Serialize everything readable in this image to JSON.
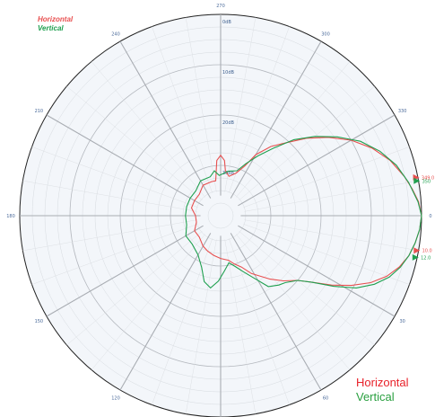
{
  "chart_data": {
    "type": "polar-line",
    "angle_ticks": [
      "0",
      "30",
      "60",
      "90",
      "120",
      "150",
      "180",
      "210",
      "240",
      "270",
      "300",
      "330"
    ],
    "radial_ticks": [
      "0dB",
      "10dB",
      "20dB",
      "30dB"
    ],
    "angle_direction": "clockwise",
    "angle_zero": "right",
    "series": [
      {
        "name": "Horizontal",
        "color": "#e85050",
        "points": [
          [
            0,
            0
          ],
          [
            4,
            -0.3
          ],
          [
            8,
            -0.9
          ],
          [
            12,
            -1.7
          ],
          [
            16,
            -3
          ],
          [
            20,
            -4.8
          ],
          [
            24,
            -7.3
          ],
          [
            28,
            -10.5
          ],
          [
            32,
            -14
          ],
          [
            36,
            -17.5
          ],
          [
            40,
            -20
          ],
          [
            46,
            -22
          ],
          [
            52,
            -24
          ],
          [
            58,
            -26
          ],
          [
            62,
            -27
          ],
          [
            68,
            -29
          ],
          [
            74,
            -30
          ],
          [
            80,
            -31
          ],
          [
            90,
            -31.5
          ],
          [
            100,
            -32
          ],
          [
            110,
            -32.5
          ],
          [
            120,
            -33
          ],
          [
            135,
            -34
          ],
          [
            150,
            -34
          ],
          [
            165,
            -35
          ],
          [
            180,
            -35
          ],
          [
            195,
            -34
          ],
          [
            210,
            -34
          ],
          [
            225,
            -34
          ],
          [
            240,
            -33
          ],
          [
            255,
            -33
          ],
          [
            262,
            -33
          ],
          [
            266,
            -29
          ],
          [
            270,
            -28
          ],
          [
            274,
            -29
          ],
          [
            276,
            -31
          ],
          [
            282,
            -32
          ],
          [
            290,
            -31
          ],
          [
            296,
            -29
          ],
          [
            300,
            -26
          ],
          [
            306,
            -23
          ],
          [
            312,
            -20.5
          ],
          [
            318,
            -17
          ],
          [
            324,
            -13.5
          ],
          [
            330,
            -10
          ],
          [
            336,
            -7
          ],
          [
            342,
            -4.5
          ],
          [
            348,
            -2.6
          ],
          [
            352,
            -1.5
          ],
          [
            356,
            -0.5
          ],
          [
            360,
            0
          ]
        ]
      },
      {
        "name": "Vertical",
        "color": "#20a050",
        "points": [
          [
            0,
            0
          ],
          [
            4,
            -0.3
          ],
          [
            8,
            -0.9
          ],
          [
            12,
            -1.7
          ],
          [
            16,
            -2.8
          ],
          [
            20,
            -4.3
          ],
          [
            24,
            -6.5
          ],
          [
            28,
            -9.4
          ],
          [
            32,
            -13.5
          ],
          [
            36,
            -17.5
          ],
          [
            40,
            -20
          ],
          [
            46,
            -21.5
          ],
          [
            50,
            -22
          ],
          [
            56,
            -23
          ],
          [
            62,
            -26
          ],
          [
            68,
            -28
          ],
          [
            74,
            -29.5
          ],
          [
            80,
            -30.5
          ],
          [
            86,
            -29
          ],
          [
            92,
            -27
          ],
          [
            98,
            -25.5
          ],
          [
            104,
            -26.5
          ],
          [
            110,
            -29
          ],
          [
            120,
            -31
          ],
          [
            135,
            -32
          ],
          [
            150,
            -32
          ],
          [
            165,
            -33
          ],
          [
            180,
            -33
          ],
          [
            195,
            -33
          ],
          [
            210,
            -33
          ],
          [
            225,
            -33
          ],
          [
            240,
            -32
          ],
          [
            255,
            -32
          ],
          [
            262,
            -31
          ],
          [
            268,
            -32
          ],
          [
            280,
            -31
          ],
          [
            290,
            -30.5
          ],
          [
            296,
            -28.5
          ],
          [
            302,
            -26
          ],
          [
            308,
            -23
          ],
          [
            314,
            -19
          ],
          [
            320,
            -15.5
          ],
          [
            326,
            -12
          ],
          [
            332,
            -8.5
          ],
          [
            338,
            -5.8
          ],
          [
            344,
            -3.6
          ],
          [
            350,
            -2
          ],
          [
            356,
            -0.6
          ],
          [
            360,
            0
          ]
        ]
      }
    ],
    "markers": [
      {
        "label": "349.0",
        "color": "#e85050",
        "angle": 349.0
      },
      {
        "label": "10.0",
        "color": "#e85050",
        "angle": 10.0
      },
      {
        "label": "350",
        "color": "#20a050",
        "angle": 350
      },
      {
        "label": "12.0",
        "color": "#20a050",
        "angle": 12.0
      }
    ],
    "legend_top_left": {
      "horizontal": "Horizontal",
      "vertical": "Vertical"
    },
    "legend_bottom_right": {
      "horizontal": "Horizontal",
      "vertical": "Vertical"
    },
    "grid": true
  }
}
